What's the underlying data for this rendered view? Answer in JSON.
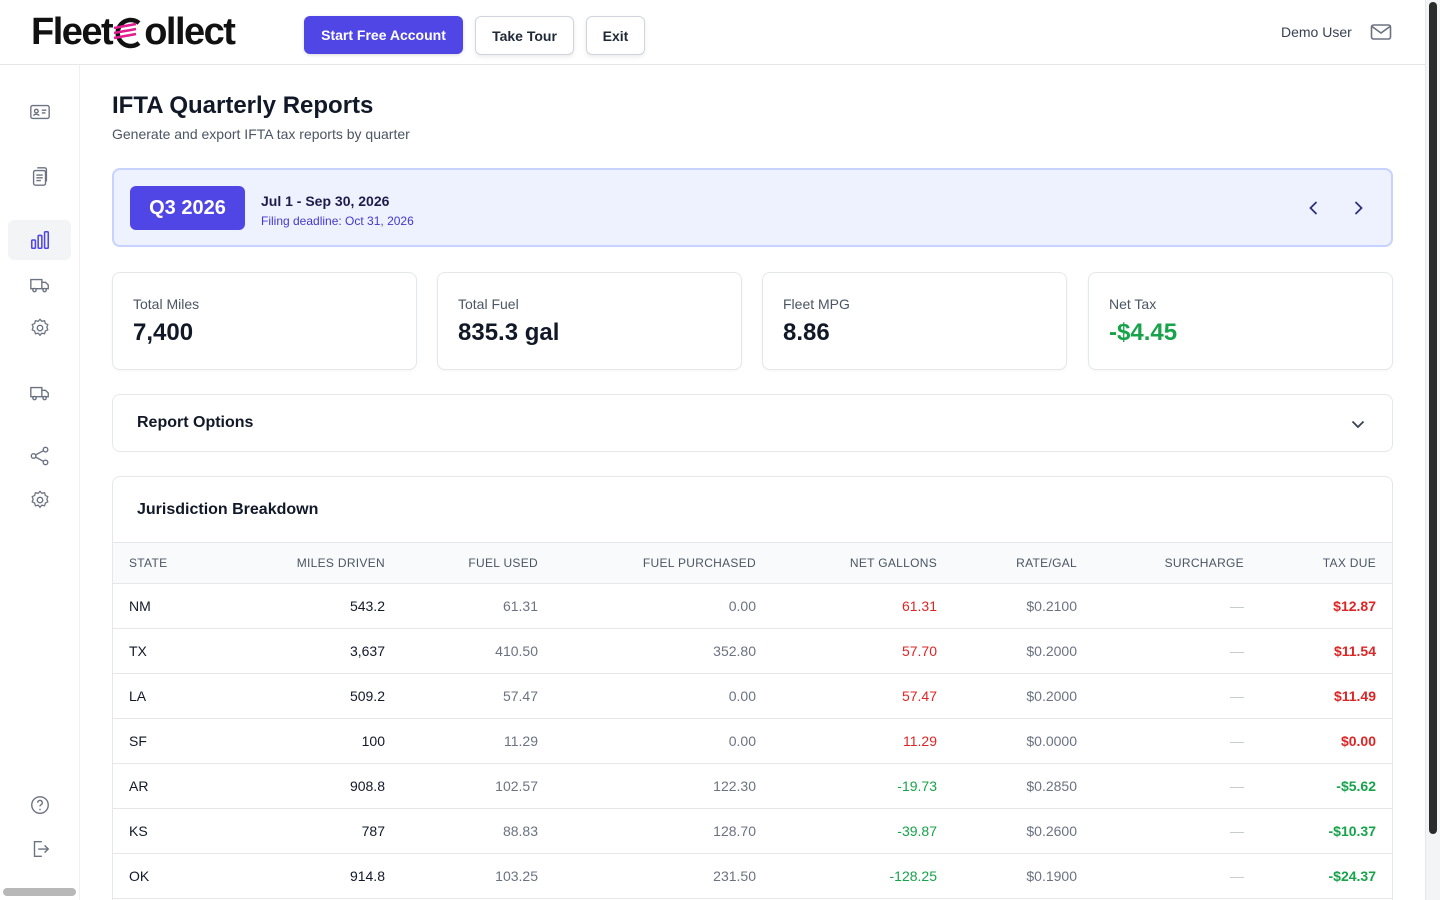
{
  "header": {
    "logo_text_a": "Fleet",
    "logo_text_b": "ollect",
    "start_button": "Start Free Account",
    "tour_button": "Take Tour",
    "exit_button": "Exit",
    "user_name": "Demo User"
  },
  "page": {
    "title": "IFTA Quarterly Reports",
    "subtitle": "Generate and export IFTA tax reports by quarter"
  },
  "quarter": {
    "label": "Q3 2026",
    "range": "Jul 1 - Sep 30, 2026",
    "deadline": "Filing deadline: Oct 31, 2026"
  },
  "stats": [
    {
      "label": "Total Miles",
      "value": "7,400"
    },
    {
      "label": "Total Fuel",
      "value": "835.3 gal"
    },
    {
      "label": "Fleet MPG",
      "value": "8.86"
    },
    {
      "label": "Net Tax",
      "value": "-$4.45"
    }
  ],
  "options": {
    "title": "Report Options"
  },
  "jurisdiction": {
    "title": "Jurisdiction Breakdown",
    "columns": [
      "STATE",
      "MILES DRIVEN",
      "FUEL USED",
      "FUEL PURCHASED",
      "NET GALLONS",
      "RATE/GAL",
      "SURCHARGE",
      "TAX DUE"
    ],
    "rows": [
      {
        "state": "NM",
        "miles": "543.2",
        "fuel_used": "61.31",
        "fuel_purchased": "0.00",
        "net_gallons": "61.31",
        "rate": "$0.2100",
        "surcharge": "—",
        "tax_due": "$12.87",
        "sign": "pos"
      },
      {
        "state": "TX",
        "miles": "3,637",
        "fuel_used": "410.50",
        "fuel_purchased": "352.80",
        "net_gallons": "57.70",
        "rate": "$0.2000",
        "surcharge": "—",
        "tax_due": "$11.54",
        "sign": "pos"
      },
      {
        "state": "LA",
        "miles": "509.2",
        "fuel_used": "57.47",
        "fuel_purchased": "0.00",
        "net_gallons": "57.47",
        "rate": "$0.2000",
        "surcharge": "—",
        "tax_due": "$11.49",
        "sign": "pos"
      },
      {
        "state": "SF",
        "miles": "100",
        "fuel_used": "11.29",
        "fuel_purchased": "0.00",
        "net_gallons": "11.29",
        "rate": "$0.0000",
        "surcharge": "—",
        "tax_due": "$0.00",
        "sign": "pos"
      },
      {
        "state": "AR",
        "miles": "908.8",
        "fuel_used": "102.57",
        "fuel_purchased": "122.30",
        "net_gallons": "-19.73",
        "rate": "$0.2850",
        "surcharge": "—",
        "tax_due": "-$5.62",
        "sign": "neg"
      },
      {
        "state": "KS",
        "miles": "787",
        "fuel_used": "88.83",
        "fuel_purchased": "128.70",
        "net_gallons": "-39.87",
        "rate": "$0.2600",
        "surcharge": "—",
        "tax_due": "-$10.37",
        "sign": "neg"
      },
      {
        "state": "OK",
        "miles": "914.8",
        "fuel_used": "103.25",
        "fuel_purchased": "231.50",
        "net_gallons": "-128.25",
        "rate": "$0.1900",
        "surcharge": "—",
        "tax_due": "-$24.37",
        "sign": "neg"
      }
    ]
  },
  "colors": {
    "accent": "#4f46e5",
    "positive": "#16a34a",
    "negative": "#dc2626"
  },
  "sidebar": {
    "icons": [
      "id-card-icon",
      "clipboard-icon",
      "bar-chart-icon",
      "truck-icon",
      "settings-icon",
      "truck-icon",
      "share-icon",
      "settings-icon",
      "help-icon",
      "logout-icon"
    ],
    "active": "bar-chart-icon"
  }
}
